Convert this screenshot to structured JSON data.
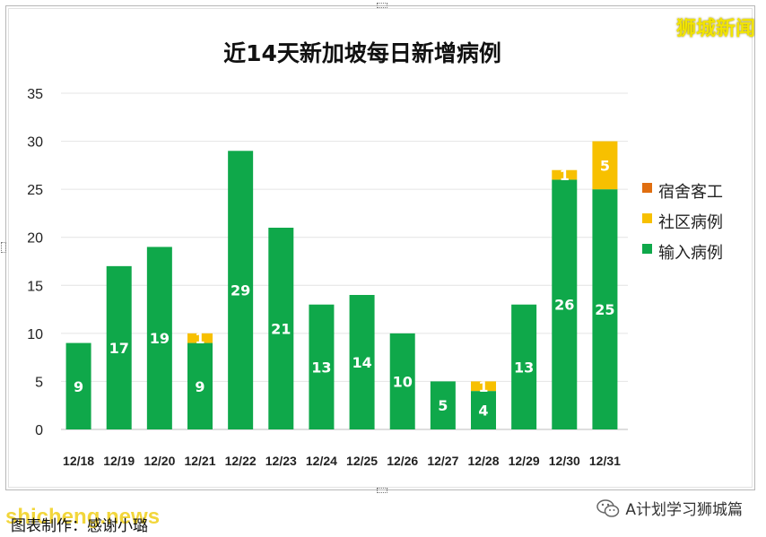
{
  "watermark": "狮城新闻",
  "footer": {
    "credit": "图表制作：感谢小璐",
    "site": "shicheng.news",
    "brand": "A计划学习狮城篇"
  },
  "colors": {
    "dorm": "#e06e10",
    "community": "#f7c000",
    "imported": "#0fa84a"
  },
  "chart_data": {
    "type": "bar",
    "stacked": true,
    "title": "近14天新加坡每日新增病例",
    "xlabel": "",
    "ylabel": "",
    "ylim": [
      0,
      35
    ],
    "yticks": [
      0,
      5,
      10,
      15,
      20,
      25,
      30,
      35
    ],
    "grid": true,
    "legend_position": "right",
    "categories": [
      "12/18",
      "12/19",
      "12/20",
      "12/21",
      "12/22",
      "12/23",
      "12/24",
      "12/25",
      "12/26",
      "12/27",
      "12/28",
      "12/29",
      "12/30",
      "12/31"
    ],
    "series": [
      {
        "name": "输入病例",
        "color": "#0fa84a",
        "values": [
          9,
          17,
          19,
          9,
          29,
          21,
          13,
          14,
          10,
          5,
          4,
          13,
          26,
          25
        ]
      },
      {
        "name": "社区病例",
        "color": "#f7c000",
        "values": [
          0,
          0,
          0,
          1,
          0,
          0,
          0,
          0,
          0,
          0,
          1,
          0,
          1,
          5
        ]
      },
      {
        "name": "宿舍客工",
        "color": "#e06e10",
        "values": [
          0,
          0,
          0,
          0,
          0,
          0,
          0,
          0,
          0,
          0,
          0,
          0,
          0,
          0
        ]
      }
    ],
    "legend": [
      "宿舍客工",
      "社区病例",
      "输入病例"
    ]
  }
}
